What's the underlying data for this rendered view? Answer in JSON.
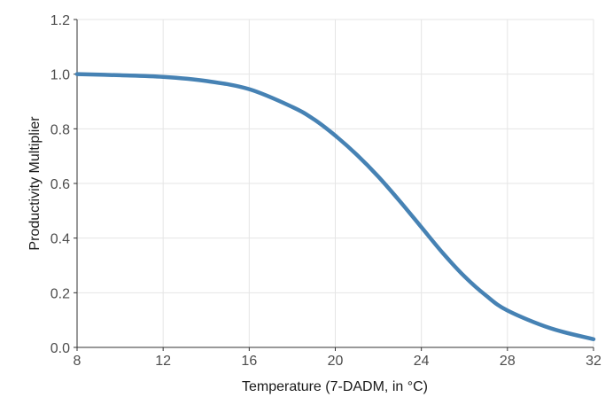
{
  "chart_data": {
    "type": "line",
    "title": "",
    "xlabel": "Temperature (7-DADM, in °C)",
    "ylabel": "Productivity Multiplier",
    "xlim": [
      8,
      32
    ],
    "ylim": [
      0,
      1.2
    ],
    "x_ticks": [
      8,
      12,
      16,
      20,
      24,
      28,
      32
    ],
    "x_tick_labels": [
      "8",
      "12",
      "16",
      "20",
      "24",
      "28",
      "32"
    ],
    "y_ticks": [
      0.0,
      0.2,
      0.4,
      0.6,
      0.8,
      1.0,
      1.2
    ],
    "y_tick_labels": [
      "0.0",
      "0.2",
      "0.4",
      "0.6",
      "0.8",
      "1.0",
      "1.2"
    ],
    "grid": true,
    "legend": "none",
    "series": [
      {
        "color": "#4682b4",
        "x": [
          8,
          10,
          12,
          14,
          16,
          18,
          19,
          20,
          21,
          22,
          23,
          24,
          25,
          26,
          27,
          28,
          30,
          32
        ],
        "y": [
          1.0,
          0.996,
          0.99,
          0.975,
          0.945,
          0.88,
          0.835,
          0.775,
          0.705,
          0.625,
          0.535,
          0.44,
          0.345,
          0.26,
          0.19,
          0.135,
          0.07,
          0.03
        ]
      }
    ]
  }
}
